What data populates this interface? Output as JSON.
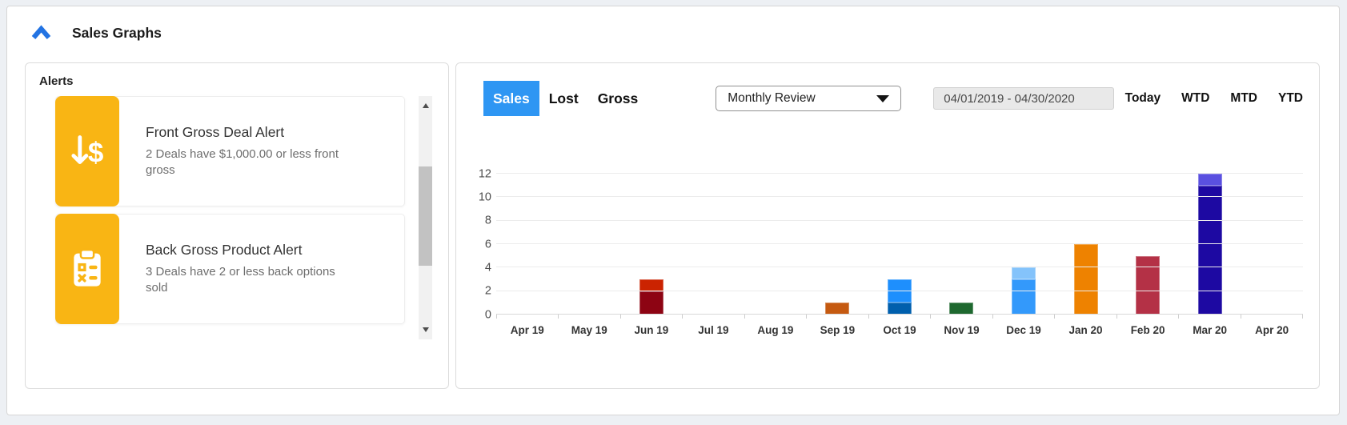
{
  "theme": {
    "accent_blue": "#2273e3",
    "tab_blue": "#2e96f3",
    "alert_yellow": "#f9b514"
  },
  "header": {
    "title": "Sales Graphs"
  },
  "alerts": {
    "heading": "Alerts",
    "items": [
      {
        "icon": "arrow-down-dollar-icon",
        "title": "Front Gross Deal Alert",
        "description": "2 Deals have $1,000.00 or less front gross"
      },
      {
        "icon": "clipboard-list-icon",
        "title": "Back Gross Product Alert",
        "description": "3 Deals have 2 or less back options sold"
      }
    ]
  },
  "chart_panel": {
    "tabs": [
      {
        "label": "Sales",
        "active": true
      },
      {
        "label": "Lost",
        "active": false
      },
      {
        "label": "Gross",
        "active": false
      }
    ],
    "dropdown": {
      "value": "Monthly Review"
    },
    "date_range": {
      "value": "04/01/2019 - 04/30/2020"
    },
    "quick_links": [
      "Today",
      "WTD",
      "MTD",
      "YTD"
    ]
  },
  "chart_data": {
    "type": "bar",
    "stacked": true,
    "title": "",
    "xlabel": "",
    "ylabel": "",
    "ylim": [
      0,
      12
    ],
    "yticks": [
      0,
      2,
      4,
      6,
      8,
      10,
      12
    ],
    "grid": true,
    "legend": "none",
    "categories": [
      "Apr 19",
      "May 19",
      "Jun 19",
      "Jul 19",
      "Aug 19",
      "Sep 19",
      "Oct 19",
      "Nov 19",
      "Dec 19",
      "Jan 20",
      "Feb 20",
      "Mar 20",
      "Apr 20"
    ],
    "bars": [
      {
        "category": "Jun 19",
        "total": 3,
        "segments": [
          {
            "value": 2,
            "color": "#8d0413"
          },
          {
            "value": 1,
            "color": "#cb2301"
          }
        ]
      },
      {
        "category": "Sep 19",
        "total": 1,
        "segments": [
          {
            "value": 1,
            "color": "#c55a11"
          }
        ]
      },
      {
        "category": "Oct 19",
        "total": 3,
        "segments": [
          {
            "value": 1,
            "color": "#005fad"
          },
          {
            "value": 2,
            "color": "#1e8ffd"
          }
        ]
      },
      {
        "category": "Nov 19",
        "total": 1,
        "segments": [
          {
            "value": 1,
            "color": "#1e682f"
          }
        ]
      },
      {
        "category": "Dec 19",
        "total": 4,
        "segments": [
          {
            "value": 3,
            "color": "#3399fb"
          },
          {
            "value": 1,
            "color": "#84c3fb"
          }
        ]
      },
      {
        "category": "Jan 20",
        "total": 6,
        "segments": [
          {
            "value": 6,
            "color": "#ee8200"
          }
        ]
      },
      {
        "category": "Feb 20",
        "total": 5,
        "segments": [
          {
            "value": 5,
            "color": "#b43146"
          }
        ]
      },
      {
        "category": "Mar 20",
        "total": 12,
        "segments": [
          {
            "value": 11,
            "color": "#1d09a2"
          },
          {
            "value": 1,
            "color": "#5a50e0"
          }
        ]
      }
    ]
  }
}
